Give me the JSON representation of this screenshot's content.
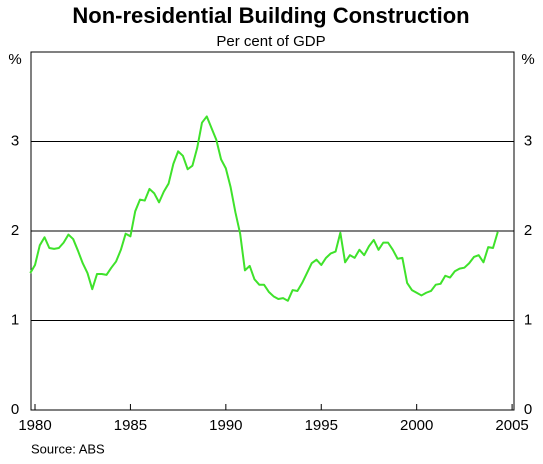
{
  "chart_data": {
    "type": "line",
    "title": "Non-residential Building Construction",
    "subtitle": "Per cent of GDP",
    "y_unit": "%",
    "source": "Source: ABS",
    "x": [
      1979.75,
      1980,
      1980.25,
      1980.5,
      1980.75,
      1981,
      1981.25,
      1981.5,
      1981.75,
      1982,
      1982.25,
      1982.5,
      1982.75,
      1983,
      1983.25,
      1983.5,
      1983.75,
      1984,
      1984.25,
      1984.5,
      1984.75,
      1985,
      1985.25,
      1985.5,
      1985.75,
      1986,
      1986.25,
      1986.5,
      1986.75,
      1987,
      1987.25,
      1987.5,
      1987.75,
      1988,
      1988.25,
      1988.5,
      1988.75,
      1989,
      1989.25,
      1989.5,
      1989.75,
      1990,
      1990.25,
      1990.5,
      1990.75,
      1991,
      1991.25,
      1991.5,
      1991.75,
      1992,
      1992.25,
      1992.5,
      1992.75,
      1993,
      1993.25,
      1993.5,
      1993.75,
      1994,
      1994.25,
      1994.5,
      1994.75,
      1995,
      1995.25,
      1995.5,
      1995.75,
      1996,
      1996.25,
      1996.5,
      1996.75,
      1997,
      1997.25,
      1997.5,
      1997.75,
      1998,
      1998.25,
      1998.5,
      1998.75,
      1999,
      1999.25,
      1999.5,
      1999.75,
      2000,
      2000.25,
      2000.5,
      2000.75,
      2001,
      2001.25,
      2001.5,
      2001.75,
      2002,
      2002.25,
      2002.5,
      2002.75,
      2003,
      2003.25,
      2003.5,
      2003.75,
      2004,
      2004.25
    ],
    "series": [
      {
        "name": "Non-residential building construction",
        "color": "#3fe22b",
        "values": [
          1.53,
          1.62,
          1.84,
          1.93,
          1.81,
          1.8,
          1.81,
          1.87,
          1.96,
          1.91,
          1.78,
          1.64,
          1.53,
          1.35,
          1.52,
          1.52,
          1.51,
          1.59,
          1.66,
          1.79,
          1.97,
          1.94,
          2.22,
          2.35,
          2.34,
          2.47,
          2.42,
          2.32,
          2.44,
          2.53,
          2.75,
          2.89,
          2.84,
          2.69,
          2.73,
          2.93,
          3.21,
          3.28,
          3.15,
          3.02,
          2.8,
          2.7,
          2.49,
          2.21,
          1.97,
          1.56,
          1.61,
          1.46,
          1.4,
          1.4,
          1.32,
          1.27,
          1.24,
          1.25,
          1.22,
          1.34,
          1.33,
          1.42,
          1.53,
          1.64,
          1.68,
          1.62,
          1.7,
          1.75,
          1.77,
          1.98,
          1.65,
          1.73,
          1.7,
          1.79,
          1.73,
          1.83,
          1.9,
          1.79,
          1.87,
          1.87,
          1.79,
          1.69,
          1.7,
          1.42,
          1.34,
          1.31,
          1.28,
          1.31,
          1.33,
          1.4,
          1.41,
          1.5,
          1.48,
          1.55,
          1.58,
          1.59,
          1.64,
          1.71,
          1.73,
          1.65,
          1.82,
          1.81,
          1.99
        ]
      }
    ],
    "xlim": [
      1979.79,
      2005.1
    ],
    "xticks": [
      1980,
      1985,
      1990,
      1995,
      2000,
      2005
    ],
    "ylim": [
      0,
      4
    ],
    "yticks": [
      0,
      1,
      2,
      3
    ],
    "grid": true
  }
}
